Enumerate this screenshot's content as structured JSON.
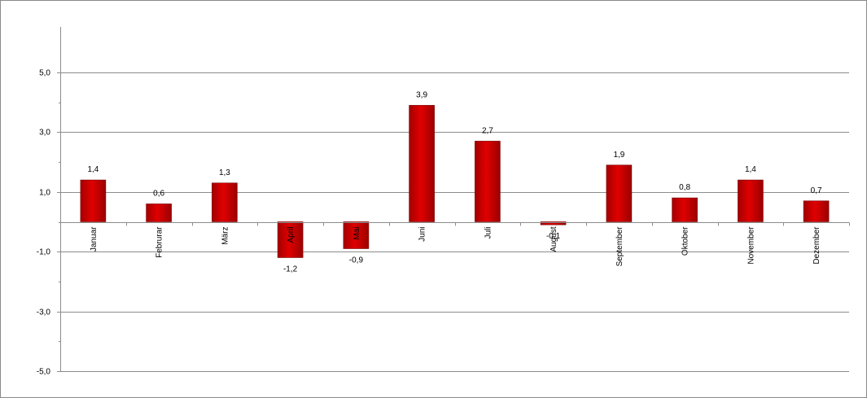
{
  "chart_data": {
    "type": "bar",
    "title": "",
    "xlabel": "",
    "ylabel": "",
    "categories": [
      "Januar",
      "Februrar",
      "März",
      "April",
      "Mai",
      "Juni",
      "Juli",
      "August",
      "September",
      "Oktober",
      "November",
      "Dezember"
    ],
    "values": [
      1.4,
      0.6,
      1.3,
      -1.2,
      -0.9,
      3.9,
      2.7,
      -0.1,
      1.9,
      0.8,
      1.4,
      0.7
    ],
    "value_labels": [
      "1,4",
      "0,6",
      "1,3",
      "-1,2",
      "-0,9",
      "3,9",
      "2,7",
      "-0,1",
      "1,9",
      "0,8",
      "1,4",
      "0,7"
    ],
    "ylim": [
      -5,
      5
    ],
    "yticks": [
      5,
      3,
      1,
      -1,
      -3,
      -5
    ],
    "ytick_labels": [
      "5,0",
      "3,0",
      "1,0",
      "-1,0",
      "-3,0",
      "-5,0"
    ],
    "grid": true,
    "legend": "none",
    "bar_color": "#cc0000"
  }
}
